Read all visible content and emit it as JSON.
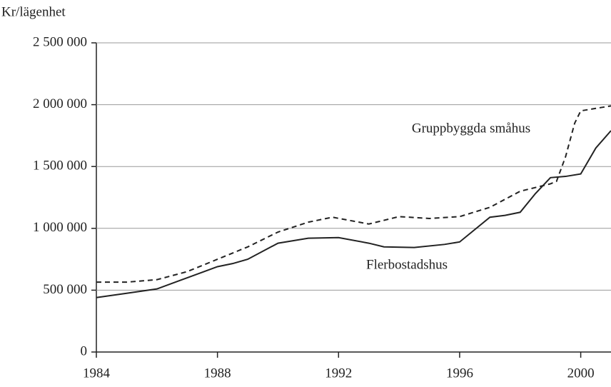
{
  "chart_data": {
    "type": "line",
    "y_axis_label": "Kr/lägenhet",
    "xlim": [
      1984,
      2001
    ],
    "xticks": [
      1984,
      1988,
      1992,
      1996,
      2000
    ],
    "ylim": [
      0,
      2500000
    ],
    "yticks": [
      0,
      {
        "value": 500000,
        "label": "500 000"
      },
      {
        "value": 1000000,
        "label": "1 000 000"
      },
      {
        "value": 1500000,
        "label": "1 500 000"
      },
      {
        "value": 2000000,
        "label": "2 000 000"
      },
      {
        "value": 2500000,
        "label": "2 500 000"
      }
    ],
    "grid": true,
    "series": [
      {
        "name": "Gruppbyggda småhus",
        "color": "#222222",
        "dashed": true,
        "x": [
          1984,
          1985,
          1986,
          1987,
          1988,
          1989,
          1990,
          1991,
          1991.8,
          1993,
          1994,
          1995,
          1996,
          1997,
          1998,
          1999,
          1999.2,
          1999.5,
          1999.8,
          2000,
          2000.5,
          2001
        ],
        "values": [
          565000,
          565000,
          585000,
          650000,
          750000,
          850000,
          970000,
          1050000,
          1090000,
          1035000,
          1095000,
          1080000,
          1095000,
          1170000,
          1300000,
          1360000,
          1380000,
          1580000,
          1850000,
          1950000,
          1970000,
          1990000
        ]
      },
      {
        "name": "Flerbostadshus",
        "color": "#222222",
        "dashed": false,
        "x": [
          1984,
          1985,
          1986,
          1987,
          1988,
          1988.5,
          1989,
          1990,
          1991,
          1992,
          1993,
          1993.5,
          1994.5,
          1995.5,
          1996,
          1997,
          1997.5,
          1998,
          1998.5,
          1999,
          1999.5,
          2000,
          2000.5,
          2001
        ],
        "values": [
          440000,
          475000,
          510000,
          600000,
          690000,
          715000,
          750000,
          880000,
          920000,
          925000,
          880000,
          850000,
          845000,
          870000,
          890000,
          1090000,
          1105000,
          1130000,
          1280000,
          1410000,
          1420000,
          1440000,
          1650000,
          1790000
        ]
      }
    ]
  }
}
